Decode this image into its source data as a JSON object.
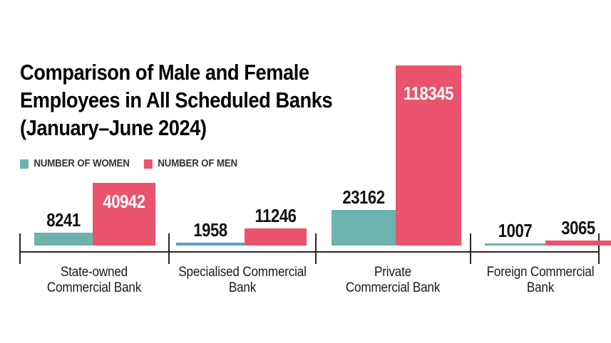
{
  "title": {
    "lines": [
      "Comparison of Male and Female",
      "Employees in All Scheduled Banks",
      "(January–June 2024)"
    ]
  },
  "legend": [
    {
      "label": "NUMBER OF WOMEN",
      "color": "#6BB3AC"
    },
    {
      "label": "NUMBER OF MEN",
      "color": "#E9536C"
    }
  ],
  "colors": {
    "women_teal": "#6BB3AC",
    "women_alt_blue": "#5B9CD6",
    "men_pink": "#E9536C",
    "axis": "#262626",
    "label_dark": "#121212",
    "label_light": "#FFFFFF",
    "background": "#FFFFFF"
  },
  "chart_data": {
    "type": "bar",
    "title": "Comparison of Male and Female Employees in All Scheduled Banks (January–June 2024)",
    "categories": [
      "State-owned Commercial Bank",
      "Specialised Commercial Bank",
      "Private Commercial Bank",
      "Foreign Commercial Bank"
    ],
    "category_lines": [
      [
        "State-owned",
        "Commercial Bank"
      ],
      [
        "Specialised Commercial",
        "Bank"
      ],
      [
        "Private",
        "Commercial Bank"
      ],
      [
        "Foreign Commercial",
        "Bank"
      ]
    ],
    "series": [
      {
        "name": "NUMBER OF WOMEN",
        "values": [
          8241,
          1958,
          23162,
          1007
        ],
        "colors": [
          "#6BB3AC",
          "#5B9CD6",
          "#6BB3AC",
          "#6BB3AC"
        ]
      },
      {
        "name": "NUMBER OF MEN",
        "values": [
          40942,
          11246,
          118345,
          3065
        ],
        "colors": [
          "#E9536C",
          "#E9536C",
          "#E9536C",
          "#E9536C"
        ]
      }
    ],
    "value_label_style": "inside_white_if_tall_else_black_above",
    "ylim": [
      0,
      118345
    ],
    "grid": false,
    "legend_position": "top-left",
    "xlabel": "",
    "ylabel": ""
  }
}
